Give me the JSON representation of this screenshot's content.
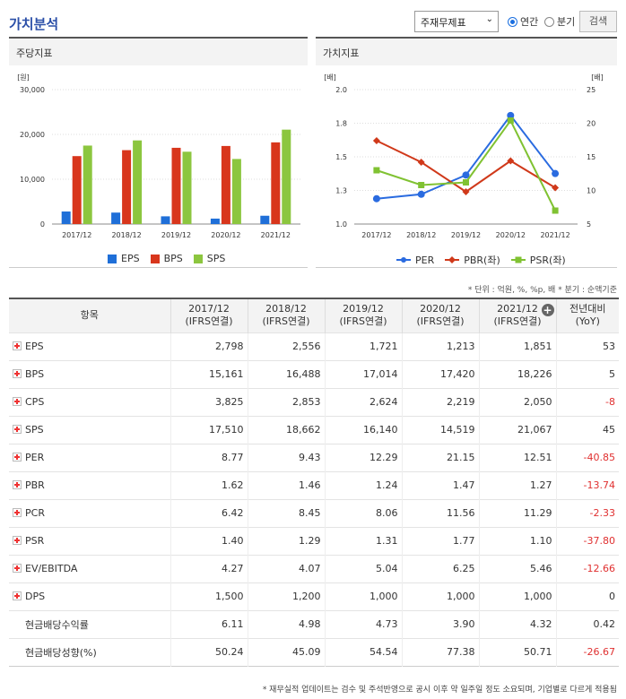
{
  "header": {
    "title": "가치분석",
    "select_value": "주재무제표",
    "radio_annual": "연간",
    "radio_quarter": "분기",
    "search_button": "검색"
  },
  "left_panel": {
    "title": "주당지표",
    "unit": "[원]",
    "legend": [
      "EPS",
      "BPS",
      "SPS"
    ]
  },
  "right_panel": {
    "title": "가치지표",
    "unit_left": "[배]",
    "unit_right": "[배]",
    "legend": [
      "PER",
      "PBR(좌)",
      "PSR(좌)"
    ]
  },
  "colors": {
    "EPS": "#1f6fd8",
    "BPS": "#d8361c",
    "SPS": "#8cc63f",
    "PER": "#2a6be0",
    "PBR": "#d0391a",
    "PSR": "#80c232"
  },
  "chart_data": [
    {
      "type": "bar",
      "categories": [
        "2017/12",
        "2018/12",
        "2019/12",
        "2020/12",
        "2021/12"
      ],
      "series": [
        {
          "name": "EPS",
          "values": [
            2798,
            2556,
            1721,
            1213,
            1851
          ]
        },
        {
          "name": "BPS",
          "values": [
            15161,
            16488,
            17014,
            17420,
            18226
          ]
        },
        {
          "name": "SPS",
          "values": [
            17510,
            18662,
            16140,
            14519,
            21067
          ]
        }
      ],
      "ylim": [
        0,
        30000
      ],
      "yticks": [
        "0",
        "10,000",
        "20,000",
        "30,000"
      ],
      "ylabel": "[원]",
      "legend_position": "bottom"
    },
    {
      "type": "line",
      "categories": [
        "2017/12",
        "2018/12",
        "2019/12",
        "2020/12",
        "2021/12"
      ],
      "series": [
        {
          "name": "PER",
          "axis": "right",
          "values": [
            8.77,
            9.43,
            12.29,
            21.15,
            12.51
          ]
        },
        {
          "name": "PBR(좌)",
          "axis": "left",
          "values": [
            1.62,
            1.46,
            1.24,
            1.47,
            1.27
          ]
        },
        {
          "name": "PSR(좌)",
          "axis": "left",
          "values": [
            1.4,
            1.29,
            1.31,
            1.77,
            1.1
          ]
        }
      ],
      "ylim_left": [
        1.0,
        2.0
      ],
      "yticks_left": [
        "1.0",
        "1.3",
        "1.5",
        "1.8",
        "2.0"
      ],
      "ylim_right": [
        5,
        25
      ],
      "yticks_right": [
        "5",
        "10",
        "15",
        "20",
        "25"
      ],
      "legend_position": "bottom"
    }
  ],
  "table": {
    "note": "* 단위 : 억원, %, %p, 배    * 분기 : 순액기준",
    "headers": {
      "item": "항목",
      "periods": [
        {
          "year": "2017/12",
          "basis": "(IFRS연결)"
        },
        {
          "year": "2018/12",
          "basis": "(IFRS연결)"
        },
        {
          "year": "2019/12",
          "basis": "(IFRS연결)"
        },
        {
          "year": "2020/12",
          "basis": "(IFRS연결)"
        },
        {
          "year": "2021/12",
          "basis": "(IFRS연결)"
        }
      ],
      "yoy": "전년대비",
      "yoy_sub": "(YoY)"
    },
    "rows": [
      {
        "label": "EPS",
        "values": [
          "2,798",
          "2,556",
          "1,721",
          "1,213",
          "1,851"
        ],
        "yoy": "53",
        "expand": true
      },
      {
        "label": "BPS",
        "values": [
          "15,161",
          "16,488",
          "17,014",
          "17,420",
          "18,226"
        ],
        "yoy": "5",
        "expand": true
      },
      {
        "label": "CPS",
        "values": [
          "3,825",
          "2,853",
          "2,624",
          "2,219",
          "2,050"
        ],
        "yoy": "-8",
        "expand": true
      },
      {
        "label": "SPS",
        "values": [
          "17,510",
          "18,662",
          "16,140",
          "14,519",
          "21,067"
        ],
        "yoy": "45",
        "expand": true
      },
      {
        "label": "PER",
        "values": [
          "8.77",
          "9.43",
          "12.29",
          "21.15",
          "12.51"
        ],
        "yoy": "-40.85",
        "expand": true
      },
      {
        "label": "PBR",
        "values": [
          "1.62",
          "1.46",
          "1.24",
          "1.47",
          "1.27"
        ],
        "yoy": "-13.74",
        "expand": true
      },
      {
        "label": "PCR",
        "values": [
          "6.42",
          "8.45",
          "8.06",
          "11.56",
          "11.29"
        ],
        "yoy": "-2.33",
        "expand": true
      },
      {
        "label": "PSR",
        "values": [
          "1.40",
          "1.29",
          "1.31",
          "1.77",
          "1.10"
        ],
        "yoy": "-37.80",
        "expand": true
      },
      {
        "label": "EV/EBITDA",
        "values": [
          "4.27",
          "4.07",
          "5.04",
          "6.25",
          "5.46"
        ],
        "yoy": "-12.66",
        "expand": true
      },
      {
        "label": "DPS",
        "values": [
          "1,500",
          "1,200",
          "1,000",
          "1,000",
          "1,000"
        ],
        "yoy": "0",
        "expand": true
      },
      {
        "label": "현금배당수익률",
        "values": [
          "6.11",
          "4.98",
          "4.73",
          "3.90",
          "4.32"
        ],
        "yoy": "0.42",
        "expand": false
      },
      {
        "label": "현금배당성향(%)",
        "values": [
          "50.24",
          "45.09",
          "54.54",
          "77.38",
          "50.71"
        ],
        "yoy": "-26.67",
        "expand": false
      }
    ]
  },
  "footer": "* 재무실적 업데이트는 검수 및 주석반영으로 공시 이후 약 일주일 정도 소요되며, 기업별로 다르게 적용됨"
}
